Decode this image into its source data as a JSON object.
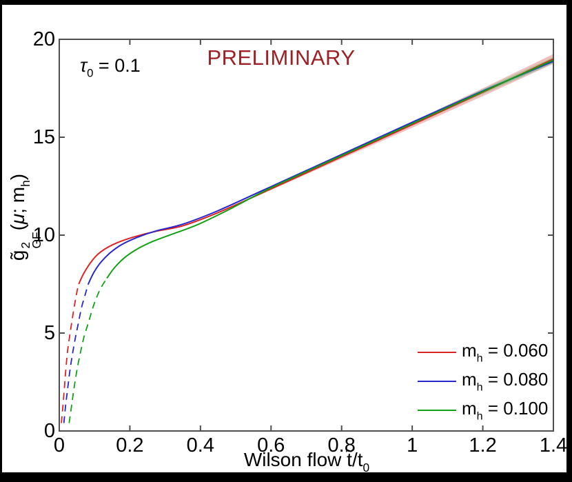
{
  "window": {
    "background": "#000000",
    "plot_background": "#ffffff",
    "axis_color": "#4d4d4d"
  },
  "annotations": {
    "preliminary": "PRELIMINARY",
    "preliminary_color": "#9e2025",
    "tau": {
      "sym": "τ",
      "sub": "0",
      "rest": " = 0.1"
    }
  },
  "axes": {
    "xlabel": {
      "main": "Wilson flow t̃/t",
      "sub": "0"
    },
    "ylabel": {
      "g": "g̃",
      "sup": "2",
      "sub": "GF",
      "open": "(",
      "mu": "μ",
      "mid": "; m",
      "msub": "h",
      "close": ")"
    }
  },
  "legend": {
    "items": [
      {
        "pre": "m",
        "sub": "h",
        "rest": " = 0.060"
      },
      {
        "pre": "m",
        "sub": "h",
        "rest": " = 0.080"
      },
      {
        "pre": "m",
        "sub": "h",
        "rest": " = 0.100"
      }
    ]
  },
  "chart_data": {
    "type": "line",
    "title": "PRELIMINARY",
    "xlabel": "Wilson flow t̃/t₀",
    "ylabel": "g̃²GF(μ; mh)",
    "xlim": [
      0,
      1.4
    ],
    "ylim": [
      0,
      20
    ],
    "xticks": [
      0,
      0.2,
      0.4,
      0.6,
      0.8,
      1,
      1.2,
      1.4
    ],
    "xtick_labels": [
      "0",
      "0.2",
      "0.4",
      "0.6",
      "0.8",
      "1",
      "1.2",
      "1.4"
    ],
    "yticks": [
      0,
      5,
      10,
      15,
      20
    ],
    "ytick_labels": [
      "0",
      "5",
      "10",
      "15",
      "20"
    ],
    "grid": false,
    "legend_position": "lower right",
    "band_start_x": 0.4,
    "series": [
      {
        "name": "mh = 0.060",
        "color": "#dd2222",
        "band_color": "rgba(225,110,110,0.45)",
        "band_k": 0.25,
        "dashed": [
          [
            0.006,
            0.4
          ],
          [
            0.01,
            1.2
          ],
          [
            0.014,
            2.1
          ],
          [
            0.018,
            3.0
          ],
          [
            0.023,
            4.0
          ],
          [
            0.029,
            4.8
          ],
          [
            0.035,
            5.5
          ],
          [
            0.043,
            6.4
          ],
          [
            0.05,
            7.1
          ],
          [
            0.055,
            7.5
          ]
        ],
        "solid": [
          [
            0.055,
            7.5
          ],
          [
            0.068,
            8.0
          ],
          [
            0.085,
            8.5
          ],
          [
            0.105,
            8.95
          ],
          [
            0.13,
            9.3
          ],
          [
            0.165,
            9.62
          ],
          [
            0.21,
            9.9
          ],
          [
            0.27,
            10.18
          ],
          [
            0.35,
            10.48
          ],
          [
            0.45,
            11.15
          ],
          [
            0.6,
            12.36
          ],
          [
            0.8,
            14.0
          ],
          [
            1.0,
            15.64
          ],
          [
            1.2,
            17.3
          ],
          [
            1.4,
            19.0
          ]
        ]
      },
      {
        "name": "mh = 0.080",
        "color": "#2626cc",
        "band_color": "rgba(120,120,225,0.40)",
        "band_k": 0.1,
        "dashed": [
          [
            0.013,
            0.4
          ],
          [
            0.018,
            1.3
          ],
          [
            0.024,
            2.2
          ],
          [
            0.031,
            3.2
          ],
          [
            0.039,
            4.1
          ],
          [
            0.046,
            4.8
          ],
          [
            0.053,
            5.4
          ],
          [
            0.063,
            6.3
          ],
          [
            0.074,
            7.0
          ],
          [
            0.082,
            7.5
          ]
        ],
        "solid": [
          [
            0.082,
            7.5
          ],
          [
            0.098,
            8.1
          ],
          [
            0.118,
            8.62
          ],
          [
            0.143,
            9.08
          ],
          [
            0.175,
            9.5
          ],
          [
            0.22,
            9.88
          ],
          [
            0.275,
            10.22
          ],
          [
            0.35,
            10.56
          ],
          [
            0.45,
            11.25
          ],
          [
            0.6,
            12.48
          ],
          [
            0.8,
            14.12
          ],
          [
            1.0,
            15.76
          ],
          [
            1.2,
            17.36
          ],
          [
            1.4,
            18.88
          ]
        ]
      },
      {
        "name": "mh = 0.100",
        "color": "#14a014",
        "band_color": "rgba(110,200,110,0.45)",
        "band_k": 0.16,
        "dashed": [
          [
            0.028,
            0.4
          ],
          [
            0.035,
            1.3
          ],
          [
            0.042,
            2.2
          ],
          [
            0.05,
            3.1
          ],
          [
            0.06,
            4.0
          ],
          [
            0.07,
            4.8
          ],
          [
            0.082,
            5.5
          ],
          [
            0.097,
            6.4
          ],
          [
            0.115,
            7.2
          ],
          [
            0.135,
            7.8
          ]
        ],
        "solid": [
          [
            0.135,
            7.8
          ],
          [
            0.157,
            8.35
          ],
          [
            0.185,
            8.85
          ],
          [
            0.22,
            9.28
          ],
          [
            0.265,
            9.68
          ],
          [
            0.32,
            10.05
          ],
          [
            0.39,
            10.52
          ],
          [
            0.48,
            11.3
          ],
          [
            0.6,
            12.42
          ],
          [
            0.8,
            14.06
          ],
          [
            1.0,
            15.7
          ],
          [
            1.2,
            17.33
          ],
          [
            1.4,
            18.94
          ]
        ]
      }
    ]
  }
}
